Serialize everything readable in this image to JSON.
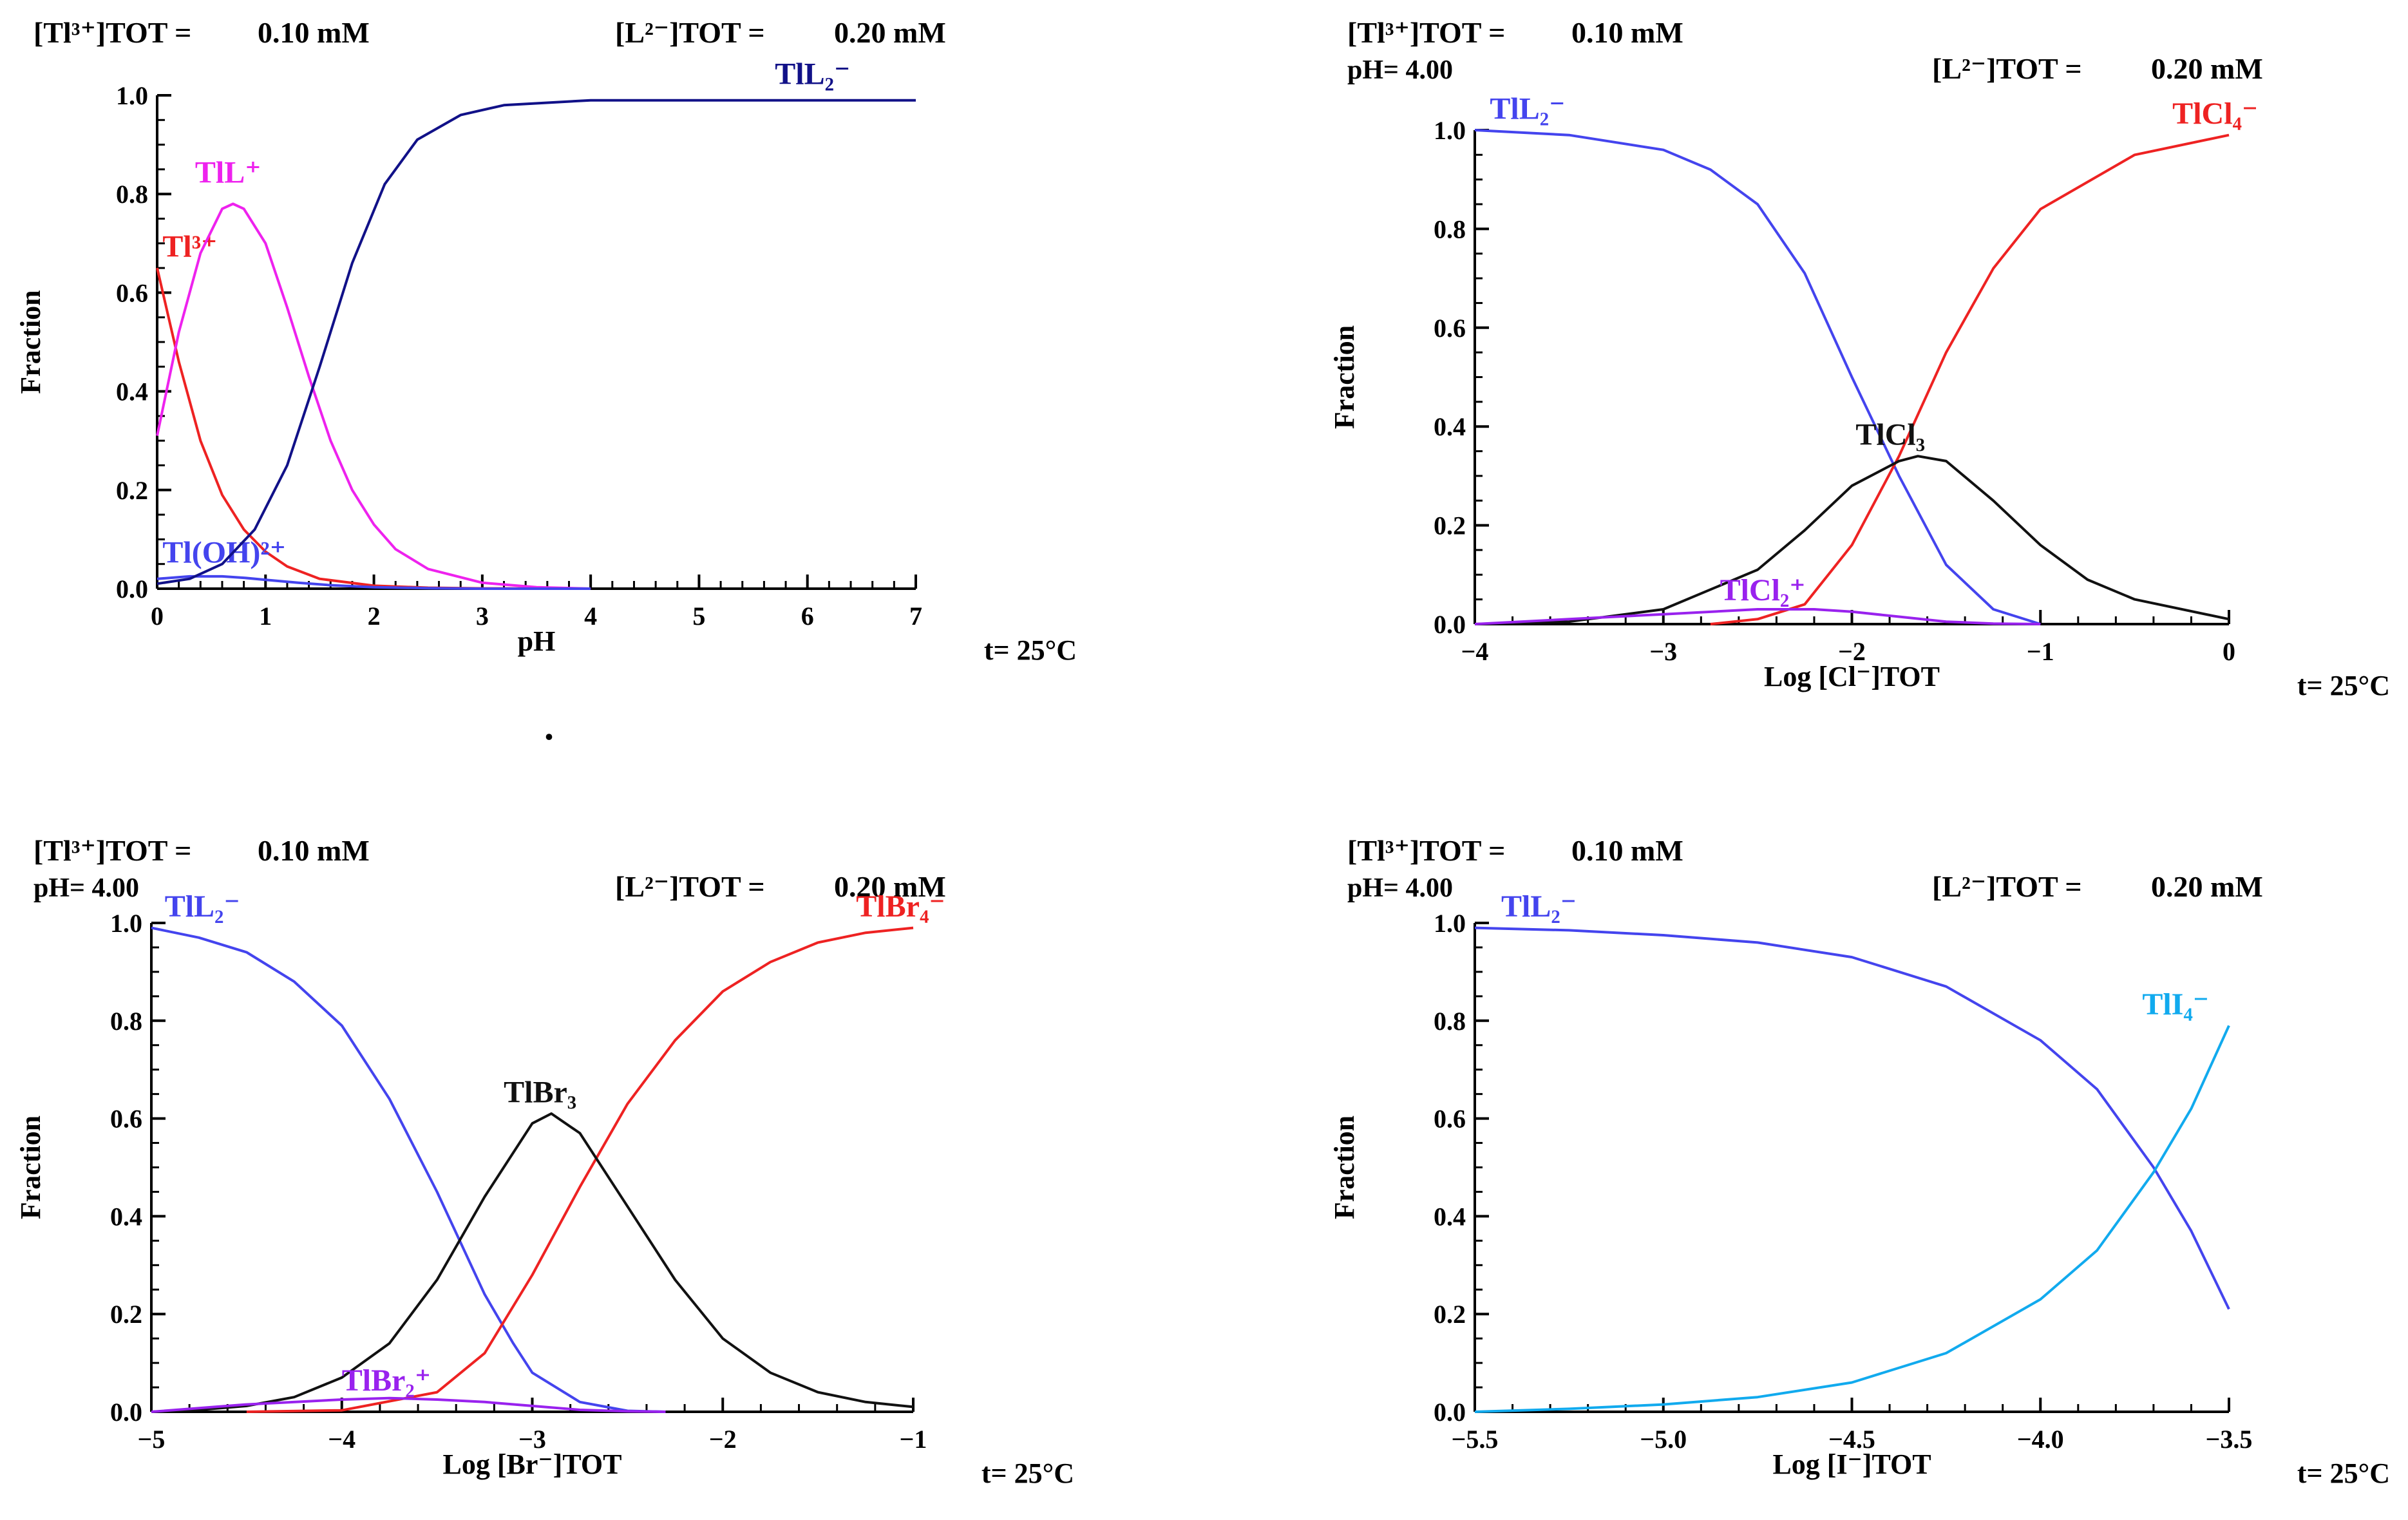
{
  "figure": {
    "stray_dot": "."
  },
  "chart_data": [
    {
      "id": "ph",
      "type": "line",
      "title": "",
      "xlabel": "pH",
      "ylabel": "Fraction",
      "xlim": [
        0,
        7
      ],
      "ylim": [
        0,
        1
      ],
      "xticks": [
        0,
        1,
        2,
        3,
        4,
        5,
        6,
        7
      ],
      "xtick_labels": [
        "0",
        "1",
        "2",
        "3",
        "4",
        "5",
        "6",
        "7"
      ],
      "yticks": [
        0,
        0.2,
        0.4,
        0.6,
        0.8,
        1.0
      ],
      "ytick_labels": [
        "0.0",
        "0.2",
        "0.4",
        "0.6",
        "0.8",
        "1.0"
      ],
      "header": {
        "metal_label": "[Tl³⁺]TOT =",
        "metal_value": "0.10 mM",
        "ligand_label": "[L²⁻]TOT =",
        "ligand_value": "0.20 mM",
        "ph_text": ""
      },
      "temperature": "t= 25°C",
      "series": [
        {
          "name": "Tl3+",
          "label": "Tl³⁺",
          "color": "#ee2222",
          "x": [
            0,
            0.2,
            0.4,
            0.6,
            0.8,
            1,
            1.2,
            1.5,
            2,
            2.5,
            3,
            4
          ],
          "y": [
            0.65,
            0.46,
            0.3,
            0.19,
            0.12,
            0.075,
            0.045,
            0.02,
            0.006,
            0.002,
            0.0005,
            0
          ]
        },
        {
          "name": "TlL+",
          "label": "TlL⁺",
          "color": "#ee22ee",
          "x": [
            0,
            0.2,
            0.4,
            0.6,
            0.7,
            0.8,
            1,
            1.2,
            1.4,
            1.6,
            1.8,
            2,
            2.2,
            2.5,
            3,
            3.5,
            4
          ],
          "y": [
            0.31,
            0.52,
            0.68,
            0.77,
            0.78,
            0.77,
            0.7,
            0.57,
            0.43,
            0.3,
            0.2,
            0.13,
            0.08,
            0.04,
            0.012,
            0.003,
            0
          ]
        },
        {
          "name": "Tl(OH)2+",
          "label": "Tl(OH)²⁺",
          "color": "#4444ee",
          "x": [
            0,
            0.3,
            0.6,
            0.8,
            1,
            1.3,
            1.6,
            2,
            2.5,
            3,
            4
          ],
          "y": [
            0.02,
            0.025,
            0.025,
            0.022,
            0.018,
            0.012,
            0.007,
            0.003,
            0.001,
            0,
            0
          ]
        },
        {
          "name": "TlL2-",
          "label": "TlL₂⁻",
          "color": "#111188",
          "x": [
            0,
            0.3,
            0.6,
            0.9,
            1.2,
            1.5,
            1.8,
            2.1,
            2.4,
            2.8,
            3.2,
            3.6,
            4,
            5,
            6,
            7
          ],
          "y": [
            0.01,
            0.02,
            0.05,
            0.12,
            0.25,
            0.45,
            0.66,
            0.82,
            0.91,
            0.96,
            0.98,
            0.985,
            0.99,
            0.99,
            0.99,
            0.99
          ]
        }
      ]
    },
    {
      "id": "cl",
      "type": "line",
      "title": "",
      "xlabel": "Log [Cl⁻]TOT",
      "ylabel": "Fraction",
      "xlim": [
        -4,
        0
      ],
      "ylim": [
        0,
        1
      ],
      "xticks": [
        -4,
        -3,
        -2,
        -1,
        0
      ],
      "xtick_labels": [
        "−4",
        "−3",
        "−2",
        "−1",
        "0"
      ],
      "yticks": [
        0,
        0.2,
        0.4,
        0.6,
        0.8,
        1.0
      ],
      "ytick_labels": [
        "0.0",
        "0.2",
        "0.4",
        "0.6",
        "0.8",
        "1.0"
      ],
      "header": {
        "metal_label": "[Tl³⁺]TOT =",
        "metal_value": "0.10 mM",
        "ligand_label": "[L²⁻]TOT =",
        "ligand_value": "0.20 mM",
        "ph_text": "pH= 4.00"
      },
      "temperature": "t= 25°C",
      "series": [
        {
          "name": "TlL2-",
          "label": "TlL₂⁻",
          "color": "#4444ee",
          "x": [
            -4,
            -3.5,
            -3,
            -2.75,
            -2.5,
            -2.25,
            -2,
            -1.75,
            -1.5,
            -1.25,
            -1
          ],
          "y": [
            1,
            0.99,
            0.96,
            0.92,
            0.85,
            0.71,
            0.5,
            0.3,
            0.12,
            0.03,
            0
          ]
        },
        {
          "name": "TlCl4-",
          "label": "TlCl₄⁻",
          "color": "#ee2222",
          "x": [
            -2.75,
            -2.5,
            -2.25,
            -2,
            -1.75,
            -1.5,
            -1.25,
            -1,
            -0.5,
            0
          ],
          "y": [
            0,
            0.01,
            0.04,
            0.16,
            0.34,
            0.55,
            0.72,
            0.84,
            0.95,
            0.99
          ]
        },
        {
          "name": "TlCl3",
          "label": "TlCl₃",
          "color": "#111111",
          "x": [
            -4,
            -3.5,
            -3,
            -2.5,
            -2.25,
            -2,
            -1.75,
            -1.65,
            -1.5,
            -1.25,
            -1,
            -0.75,
            -0.5,
            0
          ],
          "y": [
            0,
            0.005,
            0.03,
            0.11,
            0.19,
            0.28,
            0.33,
            0.34,
            0.33,
            0.25,
            0.16,
            0.09,
            0.05,
            0.01
          ]
        },
        {
          "name": "TlCl2+",
          "label": "TlCl₂⁺",
          "color": "#9922ee",
          "x": [
            -4,
            -3.5,
            -3,
            -2.5,
            -2.2,
            -2,
            -1.75,
            -1.5,
            -1.25,
            -1
          ],
          "y": [
            0,
            0.01,
            0.02,
            0.03,
            0.03,
            0.025,
            0.015,
            0.005,
            0.001,
            0
          ]
        }
      ]
    },
    {
      "id": "br",
      "type": "line",
      "title": "",
      "xlabel": "Log [Br⁻]TOT",
      "ylabel": "Fraction",
      "xlim": [
        -5,
        -1
      ],
      "ylim": [
        0,
        1
      ],
      "xticks": [
        -5,
        -4,
        -3,
        -2,
        -1
      ],
      "xtick_labels": [
        "−5",
        "−4",
        "−3",
        "−2",
        "−1"
      ],
      "yticks": [
        0,
        0.2,
        0.4,
        0.6,
        0.8,
        1.0
      ],
      "ytick_labels": [
        "0.0",
        "0.2",
        "0.4",
        "0.6",
        "0.8",
        "1.0"
      ],
      "header": {
        "metal_label": "[Tl³⁺]TOT =",
        "metal_value": "0.10 mM",
        "ligand_label": "[L²⁻]TOT =",
        "ligand_value": "0.20 mM",
        "ph_text": "pH= 4.00"
      },
      "temperature": "t= 25°C",
      "series": [
        {
          "name": "TlL2-",
          "label": "TlL₂⁻",
          "color": "#4444ee",
          "x": [
            -5,
            -4.75,
            -4.5,
            -4.25,
            -4,
            -3.75,
            -3.5,
            -3.25,
            -3.1,
            -3,
            -2.75,
            -2.5,
            -2.3
          ],
          "y": [
            0.99,
            0.97,
            0.94,
            0.88,
            0.79,
            0.64,
            0.45,
            0.24,
            0.14,
            0.08,
            0.02,
            0.002,
            0
          ]
        },
        {
          "name": "TlBr4-",
          "label": "TlBr₄⁻",
          "color": "#ee2222",
          "x": [
            -4.5,
            -4,
            -3.5,
            -3.25,
            -3,
            -2.75,
            -2.5,
            -2.25,
            -2,
            -1.75,
            -1.5,
            -1.25,
            -1
          ],
          "y": [
            0,
            0.003,
            0.04,
            0.12,
            0.28,
            0.46,
            0.63,
            0.76,
            0.86,
            0.92,
            0.96,
            0.98,
            0.99
          ]
        },
        {
          "name": "TlBr3",
          "label": "TlBr₃",
          "color": "#111111",
          "x": [
            -5,
            -4.75,
            -4.5,
            -4.25,
            -4,
            -3.75,
            -3.5,
            -3.25,
            -3,
            -2.9,
            -2.75,
            -2.5,
            -2.25,
            -2,
            -1.75,
            -1.5,
            -1.25,
            -1
          ],
          "y": [
            0,
            0.004,
            0.012,
            0.03,
            0.07,
            0.14,
            0.27,
            0.44,
            0.59,
            0.61,
            0.57,
            0.42,
            0.27,
            0.15,
            0.08,
            0.04,
            0.02,
            0.01
          ]
        },
        {
          "name": "TlBr2+",
          "label": "TlBr₂⁺",
          "color": "#9922ee",
          "x": [
            -5,
            -4.5,
            -4,
            -3.75,
            -3.5,
            -3.25,
            -3,
            -2.75,
            -2.5,
            -2.3
          ],
          "y": [
            0,
            0.015,
            0.025,
            0.028,
            0.025,
            0.02,
            0.012,
            0.004,
            0.001,
            0
          ]
        }
      ]
    },
    {
      "id": "i",
      "type": "line",
      "title": "",
      "xlabel": "Log [I⁻]TOT",
      "ylabel": "Fraction",
      "xlim": [
        -5.5,
        -3.5
      ],
      "ylim": [
        0,
        1
      ],
      "xticks": [
        -5.5,
        -5,
        -4.5,
        -4,
        -3.5
      ],
      "xtick_labels": [
        "−5.5",
        "−5.0",
        "−4.5",
        "−4.0",
        "−3.5"
      ],
      "yticks": [
        0,
        0.2,
        0.4,
        0.6,
        0.8,
        1.0
      ],
      "ytick_labels": [
        "0.0",
        "0.2",
        "0.4",
        "0.6",
        "0.8",
        "1.0"
      ],
      "header": {
        "metal_label": "[Tl³⁺]TOT =",
        "metal_value": "0.10 mM",
        "ligand_label": "[L²⁻]TOT =",
        "ligand_value": "0.20 mM",
        "ph_text": "pH= 4.00"
      },
      "temperature": "t= 25°C",
      "series": [
        {
          "name": "TlL2-",
          "label": "TlL₂⁻",
          "color": "#4444ee",
          "x": [
            -5.5,
            -5.25,
            -5,
            -4.75,
            -4.5,
            -4.25,
            -4,
            -3.85,
            -3.7,
            -3.6,
            -3.5
          ],
          "y": [
            0.99,
            0.985,
            0.975,
            0.96,
            0.93,
            0.87,
            0.76,
            0.66,
            0.5,
            0.37,
            0.21
          ]
        },
        {
          "name": "TlI4-",
          "label": "TlI₄⁻",
          "color": "#11aaee",
          "x": [
            -5.5,
            -5.25,
            -5,
            -4.75,
            -4.5,
            -4.25,
            -4,
            -3.85,
            -3.7,
            -3.6,
            -3.5
          ],
          "y": [
            0,
            0.006,
            0.015,
            0.03,
            0.06,
            0.12,
            0.23,
            0.33,
            0.49,
            0.62,
            0.79
          ]
        }
      ]
    }
  ]
}
